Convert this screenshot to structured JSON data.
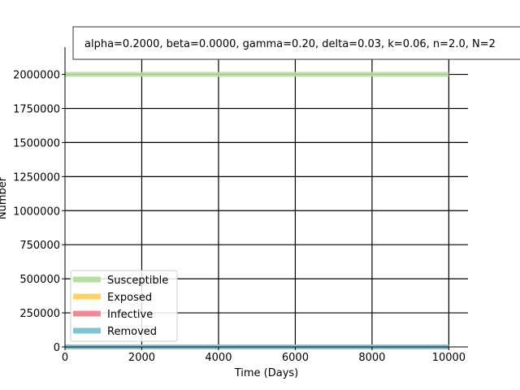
{
  "chart_data": {
    "type": "line",
    "title": "",
    "xlabel": "Time (Days)",
    "ylabel": "Number",
    "xlim": [
      0,
      10500
    ],
    "ylim": [
      0,
      2200000
    ],
    "xticks": [
      0,
      2000,
      4000,
      6000,
      8000,
      10000
    ],
    "yticks": [
      0,
      250000,
      500000,
      750000,
      1000000,
      1250000,
      1500000,
      1750000,
      2000000
    ],
    "grid": true,
    "legend_placement": "lower-left",
    "annotation": "alpha=0.2000, beta=0.0000, gamma=0.20, delta=0.03, k=0.06, n=2.0, N=2",
    "series": [
      {
        "name": "Susceptible",
        "color": "#b5dea0",
        "x": [
          0,
          10000
        ],
        "y": [
          2000000,
          2000000
        ]
      },
      {
        "name": "Exposed",
        "color": "#fdd46b",
        "x": [
          0,
          10000
        ],
        "y": [
          0,
          0
        ]
      },
      {
        "name": "Infective",
        "color": "#f0899a",
        "x": [
          0,
          10000
        ],
        "y": [
          0,
          0
        ]
      },
      {
        "name": "Removed",
        "color": "#7fc4d0",
        "x": [
          0,
          10000
        ],
        "y": [
          0,
          0
        ]
      }
    ]
  }
}
